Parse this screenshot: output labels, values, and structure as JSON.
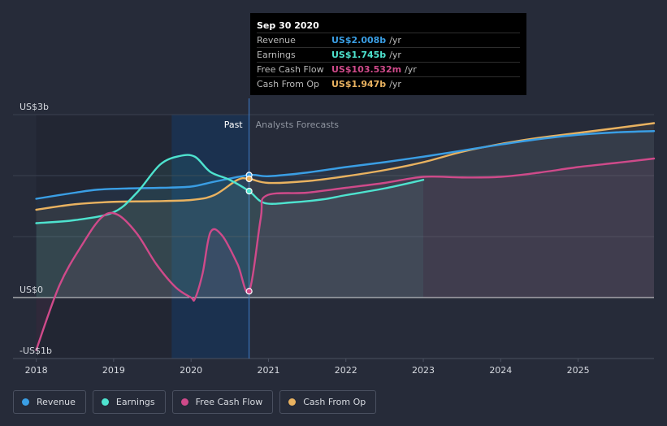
{
  "chart_data": {
    "type": "line",
    "y_axis": {
      "labels": [
        "US$3b",
        "US$0",
        "-US$1b"
      ],
      "ylim": [
        -1,
        3
      ]
    },
    "x_axis": {
      "ticks": [
        "2018",
        "2019",
        "2020",
        "2021",
        "2022",
        "2023",
        "2024",
        "2025"
      ],
      "xlim": [
        2017.7,
        2025.98
      ]
    },
    "past_label": "Past",
    "forecast_label": "Analysts Forecasts",
    "divider_x": 2020.75,
    "highlight_band": [
      2019.75,
      2020.75
    ],
    "grid": true,
    "series": [
      {
        "name": "Revenue",
        "color": "#3a9ee4",
        "points": [
          [
            2018,
            1.62
          ],
          [
            2018.5,
            1.72
          ],
          [
            2018.8,
            1.77
          ],
          [
            2019.2,
            1.79
          ],
          [
            2019.6,
            1.8
          ],
          [
            2020,
            1.82
          ],
          [
            2020.3,
            1.9
          ],
          [
            2020.75,
            2.008
          ],
          [
            2021,
            1.99
          ],
          [
            2021.5,
            2.05
          ],
          [
            2022,
            2.14
          ],
          [
            2022.5,
            2.22
          ],
          [
            2023,
            2.31
          ],
          [
            2023.5,
            2.41
          ],
          [
            2024,
            2.51
          ],
          [
            2024.5,
            2.6
          ],
          [
            2025,
            2.67
          ],
          [
            2025.5,
            2.71
          ],
          [
            2025.98,
            2.73
          ]
        ]
      },
      {
        "name": "Earnings",
        "color": "#4ee3cf",
        "points": [
          [
            2018,
            1.22
          ],
          [
            2018.5,
            1.27
          ],
          [
            2019,
            1.4
          ],
          [
            2019.3,
            1.72
          ],
          [
            2019.6,
            2.18
          ],
          [
            2019.85,
            2.32
          ],
          [
            2020.05,
            2.31
          ],
          [
            2020.25,
            2.06
          ],
          [
            2020.5,
            1.93
          ],
          [
            2020.75,
            1.745
          ],
          [
            2020.95,
            1.55
          ],
          [
            2021.3,
            1.56
          ],
          [
            2021.7,
            1.61
          ],
          [
            2022,
            1.68
          ],
          [
            2022.5,
            1.79
          ],
          [
            2023,
            1.93
          ]
        ]
      },
      {
        "name": "Free Cash Flow",
        "color": "#cf4a8a",
        "points": [
          [
            2018,
            -0.86
          ],
          [
            2018.3,
            0.2
          ],
          [
            2018.6,
            0.88
          ],
          [
            2018.85,
            1.32
          ],
          [
            2019.05,
            1.36
          ],
          [
            2019.3,
            1.05
          ],
          [
            2019.55,
            0.55
          ],
          [
            2019.8,
            0.17
          ],
          [
            2020,
            0.0
          ],
          [
            2020.05,
            -0.02
          ],
          [
            2020.15,
            0.4
          ],
          [
            2020.25,
            1.07
          ],
          [
            2020.4,
            1.02
          ],
          [
            2020.6,
            0.55
          ],
          [
            2020.75,
            0.1035
          ],
          [
            2020.9,
            1.3
          ],
          [
            2020.97,
            1.67
          ],
          [
            2021.5,
            1.72
          ],
          [
            2022,
            1.8
          ],
          [
            2022.5,
            1.88
          ],
          [
            2023,
            1.98
          ],
          [
            2023.5,
            1.97
          ],
          [
            2024,
            1.98
          ],
          [
            2024.5,
            2.05
          ],
          [
            2025,
            2.14
          ],
          [
            2025.5,
            2.21
          ],
          [
            2025.98,
            2.28
          ]
        ]
      },
      {
        "name": "Cash From Op",
        "color": "#e9b260",
        "points": [
          [
            2018,
            1.44
          ],
          [
            2018.5,
            1.53
          ],
          [
            2019,
            1.57
          ],
          [
            2019.5,
            1.58
          ],
          [
            2020,
            1.6
          ],
          [
            2020.3,
            1.68
          ],
          [
            2020.6,
            1.93
          ],
          [
            2020.75,
            1.947
          ],
          [
            2021,
            1.88
          ],
          [
            2021.5,
            1.91
          ],
          [
            2022,
            1.99
          ],
          [
            2022.5,
            2.09
          ],
          [
            2023,
            2.22
          ],
          [
            2023.5,
            2.39
          ],
          [
            2024,
            2.52
          ],
          [
            2024.5,
            2.62
          ],
          [
            2025,
            2.7
          ],
          [
            2025.5,
            2.78
          ],
          [
            2025.98,
            2.86
          ]
        ]
      }
    ]
  },
  "tooltip": {
    "date": "Sep 30 2020",
    "rows": [
      {
        "label": "Revenue",
        "value": "US$2.008b",
        "unit": "/yr",
        "color": "#3a9ee4"
      },
      {
        "label": "Earnings",
        "value": "US$1.745b",
        "unit": "/yr",
        "color": "#4ee3cf"
      },
      {
        "label": "Free Cash Flow",
        "value": "US$103.532m",
        "unit": "/yr",
        "color": "#cf4a8a"
      },
      {
        "label": "Cash From Op",
        "value": "US$1.947b",
        "unit": "/yr",
        "color": "#e9b260"
      }
    ]
  },
  "legend": [
    {
      "label": "Revenue",
      "color": "#3a9ee4"
    },
    {
      "label": "Earnings",
      "color": "#4ee3cf"
    },
    {
      "label": "Free Cash Flow",
      "color": "#cf4a8a"
    },
    {
      "label": "Cash From Op",
      "color": "#e9b260"
    }
  ]
}
